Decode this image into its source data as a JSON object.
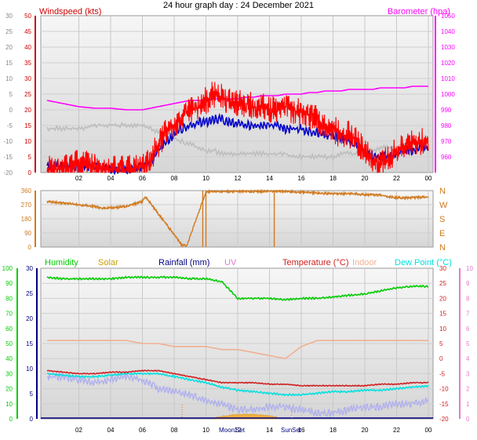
{
  "title": "24 hour graph day : 24 December 2021",
  "colors": {
    "wind": "#ff0000",
    "gust_avg": "#0000cc",
    "baro": "#ff00ff",
    "wind_left": "#cc0000",
    "dir": "#d07a20",
    "humidity": "#00cc00",
    "solar": "#c8a000",
    "rain": "#000080",
    "uv": "#e07ad0",
    "temp": "#d02020",
    "indoor": "#f0b090",
    "dew": "#00e0e0",
    "frame": "#999999",
    "panel_bg_top": "#f4f4f4",
    "panel_bg_bottom": "#dadada"
  },
  "x_tick_labels": [
    "02",
    "04",
    "06",
    "08",
    "10",
    "12",
    "14",
    "16",
    "18",
    "20",
    "22",
    "00"
  ],
  "moon_sun_labels": [
    "Moon",
    "Set",
    "Sun",
    "Set"
  ],
  "chart_data": [
    {
      "type": "line",
      "panel": "wind_baro",
      "legend": {
        "left": "Windspeed (kts)",
        "right": "Barometer (hpa)"
      },
      "ylim_left": [
        0,
        50
      ],
      "yticks_left": [
        "0",
        "5",
        "10",
        "15",
        "20",
        "25",
        "30",
        "35",
        "40",
        "45",
        "50"
      ],
      "ylim_outer": [
        -20,
        30
      ],
      "yticks_outer": [
        "-20",
        "-15",
        "-10",
        "-5",
        "0",
        "5",
        "10",
        "15",
        "20",
        "25",
        "30"
      ],
      "ylim_right": [
        950,
        1050
      ],
      "yticks_right": [
        "960",
        "970",
        "980",
        "990",
        "1000",
        "1010",
        "1020",
        "1030",
        "1040",
        "1050"
      ],
      "x_hours": [
        0,
        1,
        2,
        3,
        4,
        5,
        6,
        6.5,
        7,
        7.5,
        8,
        8.5,
        9,
        9.5,
        10,
        10.5,
        11,
        11.5,
        12,
        12.5,
        13,
        13.5,
        14,
        14.5,
        15,
        15.5,
        16,
        16.5,
        17,
        17.5,
        18,
        18.5,
        19,
        19.5,
        20,
        20.5,
        21,
        21.5,
        22,
        22.5,
        23,
        23.5,
        24
      ],
      "series": [
        {
          "name": "Windspeed (kts)",
          "axis": "left",
          "values": [
            3,
            3,
            5,
            4,
            3,
            3,
            4,
            6,
            11,
            15,
            17,
            20,
            22,
            23,
            25,
            27,
            26,
            25,
            24,
            24,
            23,
            23,
            22,
            22,
            23,
            22,
            21,
            20,
            19,
            17,
            16,
            14,
            14,
            12,
            9,
            6,
            5,
            6,
            9,
            10,
            11,
            12,
            12
          ]
        },
        {
          "name": "Barometer (hpa)",
          "axis": "right",
          "values": [
            996,
            994,
            992,
            991,
            991,
            990,
            990,
            991,
            992,
            993,
            994,
            995,
            996,
            996,
            996,
            997,
            997,
            997,
            997,
            998,
            998,
            999,
            999,
            999,
            1000,
            1000,
            1000,
            1001,
            1001,
            1002,
            1002,
            1002,
            1003,
            1003,
            1003,
            1003,
            1004,
            1004,
            1004,
            1004,
            1005,
            1005,
            1005
          ]
        },
        {
          "name": "",
          "axis": "left",
          "values": [
            2,
            2,
            2,
            2,
            1,
            1,
            2,
            3,
            7,
            10,
            12,
            14,
            15,
            16,
            16,
            17,
            17,
            16,
            16,
            15,
            15,
            15,
            15,
            15,
            14,
            14,
            14,
            13,
            13,
            12,
            12,
            11,
            10,
            9,
            7,
            5,
            5,
            5,
            6,
            7,
            7,
            8,
            8
          ]
        },
        {
          "name": "",
          "axis": "outer",
          "values": [
            -6,
            -6,
            -6,
            -5,
            -5,
            -5,
            -5,
            -6,
            -7,
            -8,
            -9,
            -10,
            -11,
            -12,
            -13,
            -13,
            -14,
            -14,
            -14,
            -14,
            -14,
            -14,
            -14,
            -14,
            -14,
            -15,
            -15,
            -15,
            -15,
            -15,
            -15,
            -14,
            -14,
            -14,
            -13,
            -13,
            -12,
            -12,
            -12,
            -11,
            -11,
            -11,
            -11
          ]
        }
      ]
    },
    {
      "type": "line",
      "panel": "wind_direction",
      "ylim": [
        0,
        360
      ],
      "yticks": [
        "0",
        "90",
        "180",
        "270",
        "360"
      ],
      "compass_labels": [
        "N",
        "W",
        "S",
        "E",
        "N"
      ],
      "x_hours": [
        0,
        1,
        2,
        3,
        3.5,
        4,
        5,
        6,
        6.2,
        8.5,
        8.8,
        10,
        10.3,
        11,
        12,
        13,
        14,
        15,
        16,
        17,
        18,
        19,
        20,
        21,
        22,
        23,
        24
      ],
      "series": [
        {
          "name": "",
          "values": [
            290,
            280,
            270,
            260,
            245,
            250,
            260,
            290,
            320,
            12,
            12,
            350,
            355,
            355,
            355,
            355,
            355,
            355,
            350,
            345,
            340,
            340,
            335,
            330,
            315,
            315,
            320
          ]
        }
      ]
    },
    {
      "type": "line",
      "panel": "temp_humidity",
      "legend": [
        "Humidity",
        "Solar",
        "Rainfall (mm)",
        "UV",
        "Temperature (°C)",
        "Indoor",
        "Dew Point (°C)"
      ],
      "ylim_humidity": [
        0,
        100
      ],
      "yticks_humidity": [
        "0",
        "10",
        "20",
        "30",
        "40",
        "50",
        "60",
        "70",
        "80",
        "90",
        "100"
      ],
      "ylim_rain": [
        0,
        30
      ],
      "yticks_rain": [
        "0",
        "5",
        "10",
        "15",
        "20",
        "25",
        "30"
      ],
      "ylim_temp": [
        -20,
        30
      ],
      "yticks_temp": [
        "-20",
        "-15",
        "-10",
        "-5",
        "0",
        "5",
        "10",
        "15",
        "20",
        "25",
        "30"
      ],
      "ylim_uv": [
        0,
        10
      ],
      "yticks_uv": [
        "0",
        "1",
        "2",
        "3",
        "4",
        "5",
        "6",
        "7",
        "8",
        "9",
        "10"
      ],
      "x_hours": [
        0,
        1,
        2,
        3,
        4,
        5,
        6,
        7,
        8,
        9,
        10,
        11,
        12,
        13,
        14,
        15,
        16,
        17,
        18,
        19,
        20,
        21,
        22,
        23,
        24
      ],
      "series": [
        {
          "name": "Humidity",
          "axis": "humidity",
          "values": [
            94,
            93,
            93,
            93,
            93,
            94,
            94,
            94,
            94,
            93,
            93,
            91,
            80,
            80,
            80,
            79,
            80,
            80,
            81,
            82,
            83,
            85,
            87,
            88,
            88
          ]
        },
        {
          "name": "Indoor",
          "axis": "temp",
          "values": [
            6,
            6,
            6,
            6,
            6,
            6,
            5,
            5,
            4,
            4,
            4,
            3,
            3,
            2,
            1,
            0,
            4,
            6,
            6,
            6,
            6,
            6,
            6,
            6,
            6
          ]
        },
        {
          "name": "Temperature (°C)",
          "axis": "temp",
          "values": [
            -4,
            -4.5,
            -5,
            -5,
            -4.5,
            -4.5,
            -4,
            -4,
            -5,
            -6,
            -7,
            -8,
            -8,
            -8,
            -8.5,
            -8.5,
            -9,
            -9,
            -9,
            -9,
            -9,
            -8.5,
            -8.5,
            -8,
            -8
          ]
        },
        {
          "name": "Dew Point (°C)",
          "axis": "temp",
          "values": [
            -5,
            -5.5,
            -6,
            -6,
            -5.5,
            -5,
            -5,
            -5,
            -6,
            -7,
            -8,
            -9.5,
            -10.5,
            -11,
            -11.5,
            -12,
            -12,
            -11.5,
            -11,
            -11,
            -10.5,
            -10.5,
            -10,
            -9.5,
            -9
          ]
        },
        {
          "name": "",
          "axis": "temp",
          "values": [
            -6,
            -6,
            -7,
            -8,
            -7,
            -6,
            -7,
            -10,
            -11,
            -12,
            -14,
            -15,
            -17,
            -17,
            -16,
            -16,
            -17,
            -18,
            -18,
            -17,
            -16,
            -16,
            -15,
            -15,
            -14
          ]
        },
        {
          "name": "Solar",
          "axis": "temp",
          "values": [
            -20,
            -20,
            -20,
            -20,
            -20,
            -20,
            -20,
            -20,
            -20,
            -20,
            -20,
            -19.2,
            -18.5,
            -18.5,
            -19,
            -20,
            -20,
            -20,
            -20,
            -20,
            -20,
            -20,
            -20,
            -20,
            -20
          ]
        }
      ]
    }
  ]
}
